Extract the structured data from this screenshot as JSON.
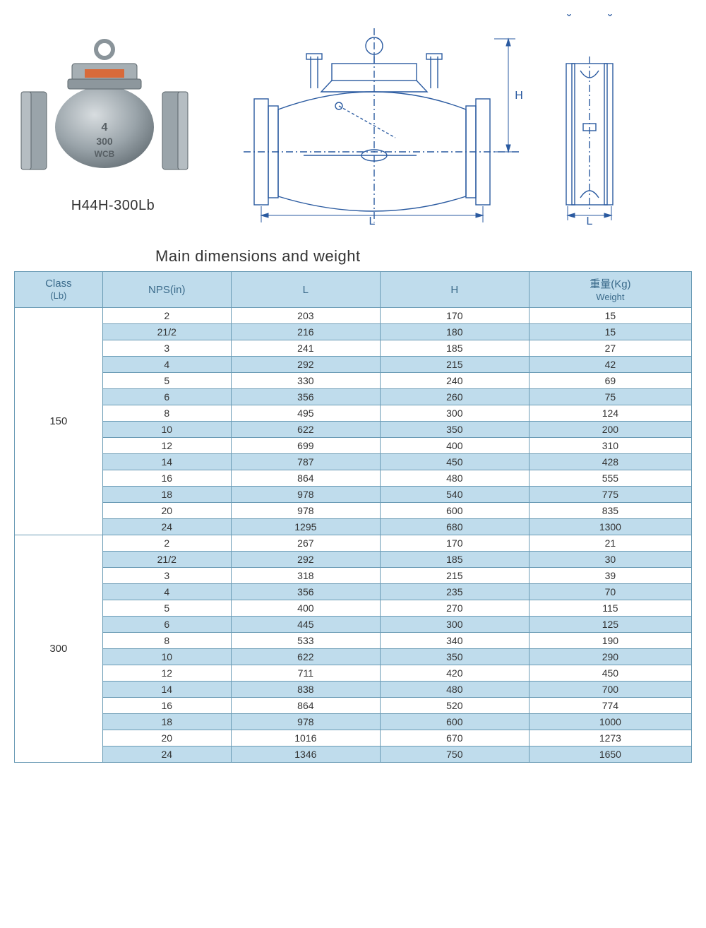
{
  "product": {
    "label": "H44H-300Lb"
  },
  "drawing": {
    "dim_L": "L",
    "dim_H": "H",
    "dim_L2": "L"
  },
  "table": {
    "title": "Main dimensions and weight",
    "headers": {
      "class": "Class",
      "class_unit": "(Lb)",
      "nps": "NPS(in)",
      "l": "L",
      "h": "H",
      "weight_cn": "重量(Kg)",
      "weight_en": "Weight"
    },
    "colors": {
      "header_bg": "#bfdcec",
      "header_text": "#3a6a8a",
      "border": "#6a9bb5",
      "row_even_bg": "#bfdcec",
      "row_odd_bg": "#ffffff"
    },
    "groups": [
      {
        "class": "150",
        "rows": [
          {
            "nps": "2",
            "l": "203",
            "h": "170",
            "w": "15"
          },
          {
            "nps": "21/2",
            "l": "216",
            "h": "180",
            "w": "15"
          },
          {
            "nps": "3",
            "l": "241",
            "h": "185",
            "w": "27"
          },
          {
            "nps": "4",
            "l": "292",
            "h": "215",
            "w": "42"
          },
          {
            "nps": "5",
            "l": "330",
            "h": "240",
            "w": "69"
          },
          {
            "nps": "6",
            "l": "356",
            "h": "260",
            "w": "75"
          },
          {
            "nps": "8",
            "l": "495",
            "h": "300",
            "w": "124"
          },
          {
            "nps": "10",
            "l": "622",
            "h": "350",
            "w": "200"
          },
          {
            "nps": "12",
            "l": "699",
            "h": "400",
            "w": "310"
          },
          {
            "nps": "14",
            "l": "787",
            "h": "450",
            "w": "428"
          },
          {
            "nps": "16",
            "l": "864",
            "h": "480",
            "w": "555"
          },
          {
            "nps": "18",
            "l": "978",
            "h": "540",
            "w": "775"
          },
          {
            "nps": "20",
            "l": "978",
            "h": "600",
            "w": "835"
          },
          {
            "nps": "24",
            "l": "1295",
            "h": "680",
            "w": "1300"
          }
        ]
      },
      {
        "class": "300",
        "rows": [
          {
            "nps": "2",
            "l": "267",
            "h": "170",
            "w": "21"
          },
          {
            "nps": "21/2",
            "l": "292",
            "h": "185",
            "w": "30"
          },
          {
            "nps": "3",
            "l": "318",
            "h": "215",
            "w": "39"
          },
          {
            "nps": "4",
            "l": "356",
            "h": "235",
            "w": "70"
          },
          {
            "nps": "5",
            "l": "400",
            "h": "270",
            "w": "115"
          },
          {
            "nps": "6",
            "l": "445",
            "h": "300",
            "w": "125"
          },
          {
            "nps": "8",
            "l": "533",
            "h": "340",
            "w": "190"
          },
          {
            "nps": "10",
            "l": "622",
            "h": "350",
            "w": "290"
          },
          {
            "nps": "12",
            "l": "711",
            "h": "420",
            "w": "450"
          },
          {
            "nps": "14",
            "l": "838",
            "h": "480",
            "w": "700"
          },
          {
            "nps": "16",
            "l": "864",
            "h": "520",
            "w": "774"
          },
          {
            "nps": "18",
            "l": "978",
            "h": "600",
            "w": "1000"
          },
          {
            "nps": "20",
            "l": "1016",
            "h": "670",
            "w": "1273"
          },
          {
            "nps": "24",
            "l": "1346",
            "h": "750",
            "w": "1650"
          }
        ]
      }
    ]
  }
}
